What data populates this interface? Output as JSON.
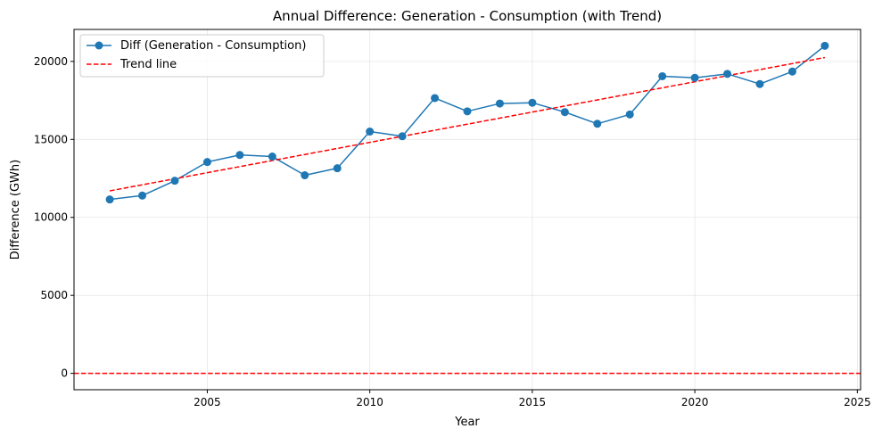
{
  "chart_data": {
    "type": "line",
    "title": "Annual Difference: Generation - Consumption (with Trend)",
    "xlabel": "Year",
    "ylabel": "Difference (GWh)",
    "xlim": [
      2000.9,
      2025.1
    ],
    "ylim": [
      -1050,
      22050
    ],
    "x_ticks": [
      2005,
      2010,
      2015,
      2020,
      2025
    ],
    "y_ticks": [
      0,
      5000,
      10000,
      15000,
      20000
    ],
    "grid": true,
    "legend_position": "top-left",
    "series": [
      {
        "name": "Diff (Generation - Consumption)",
        "color": "#1f77b4",
        "style": "solid",
        "marker": "circle",
        "x": [
          2002,
          2003,
          2004,
          2005,
          2006,
          2007,
          2008,
          2009,
          2010,
          2011,
          2012,
          2013,
          2014,
          2015,
          2016,
          2017,
          2018,
          2019,
          2020,
          2021,
          2022,
          2023,
          2024
        ],
        "y": [
          11150,
          11400,
          12350,
          13550,
          14000,
          13900,
          12700,
          13150,
          15500,
          15200,
          17650,
          16800,
          17300,
          17350,
          16750,
          16000,
          16600,
          19050,
          18950,
          19200,
          18550,
          19350,
          21000
        ]
      },
      {
        "name": "Trend line",
        "color": "#ff0000",
        "style": "dashed",
        "marker": "none",
        "x": [
          2002,
          2024
        ],
        "y": [
          11700,
          20250
        ]
      }
    ],
    "reference_line": {
      "y": 0,
      "color": "#ff0000",
      "style": "dashed"
    }
  }
}
